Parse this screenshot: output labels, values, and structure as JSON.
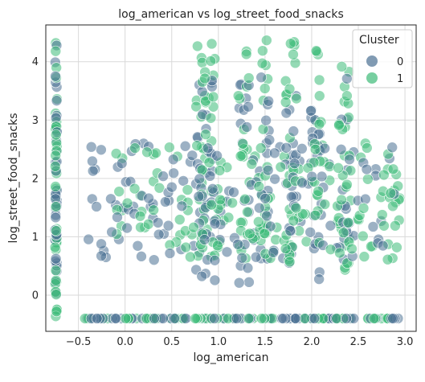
{
  "chart_data": {
    "type": "scatter",
    "title": "log_american vs log_street_food_snacks",
    "xlabel": "log_american",
    "ylabel": "log_street_food_snacks",
    "xlim": [
      -0.85,
      3.12
    ],
    "ylim": [
      -0.62,
      4.63
    ],
    "xticks": [
      "−0.5",
      "0.0",
      "0.5",
      "1.0",
      "1.5",
      "2.0",
      "2.5",
      "3.0"
    ],
    "xtick_values": [
      -0.5,
      0.0,
      0.5,
      1.0,
      1.5,
      2.0,
      2.5,
      3.0
    ],
    "yticks": [
      "0",
      "1",
      "2",
      "3",
      "4"
    ],
    "ytick_values": [
      0,
      1,
      2,
      3,
      4
    ],
    "grid": true,
    "legend": {
      "title": "Cluster",
      "placement": "top-right"
    },
    "series": [
      {
        "name": "0",
        "color": "#4b7193",
        "alpha": 0.55
      },
      {
        "name": "1",
        "color": "#3dbb78",
        "alpha": 0.55
      }
    ],
    "clusters": [
      {
        "label": "0",
        "x": -0.74,
        "y_range": [
          -0.4,
          4.3
        ],
        "count": 40,
        "type": "column"
      },
      {
        "label": "1",
        "x": -0.74,
        "y_range": [
          -0.4,
          4.4
        ],
        "count": 40,
        "type": "column"
      },
      {
        "label": "0",
        "x_range": [
          -0.45,
          2.95
        ],
        "y": -0.4,
        "count": 70,
        "type": "row"
      },
      {
        "label": "1",
        "x_range": [
          -0.45,
          2.95
        ],
        "y": -0.4,
        "count": 60,
        "type": "row"
      },
      {
        "label": "0",
        "x_range": [
          -0.45,
          2.9
        ],
        "y_range": [
          0.2,
          3.8
        ],
        "count": 260,
        "type": "cloud"
      },
      {
        "label": "1",
        "x_range": [
          -0.1,
          2.95
        ],
        "y_range": [
          0.4,
          4.4
        ],
        "count": 300,
        "type": "cloud"
      }
    ]
  }
}
